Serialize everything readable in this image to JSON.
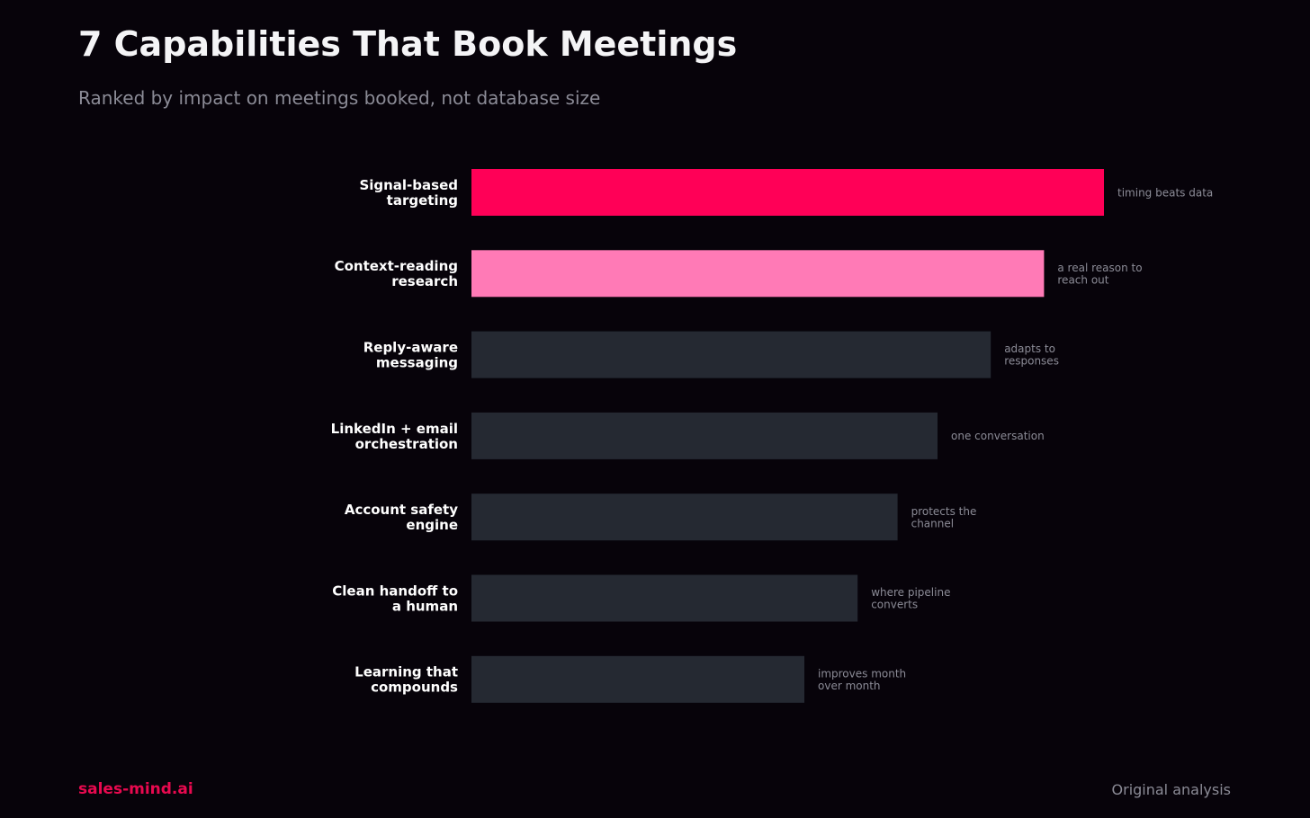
{
  "header": {
    "title": "7 Capabilities That Book Meetings",
    "subtitle": "Ranked by impact on meetings booked, not database size"
  },
  "footer": {
    "brand": "sales-mind.ai",
    "source": "Original analysis"
  },
  "colors": {
    "top": "#ff0057",
    "second": "#ff7ab6",
    "rest": "#252932",
    "label": "#ffffff",
    "note": "#8b8b96"
  },
  "chart_data": {
    "type": "bar",
    "orientation": "horizontal",
    "categories": [
      [
        "Signal-based",
        "targeting"
      ],
      [
        "Context-reading",
        "research"
      ],
      [
        "Reply-aware",
        "messaging"
      ],
      [
        "LinkedIn + email",
        "orchestration"
      ],
      [
        "Account safety",
        "engine"
      ],
      [
        "Clean handoff to",
        "a human"
      ],
      [
        "Learning that",
        "compounds"
      ]
    ],
    "values": [
      95,
      86,
      78,
      70,
      64,
      58,
      50
    ],
    "annotations": [
      [
        "timing beats data"
      ],
      [
        "a real reason to",
        "reach out"
      ],
      [
        "adapts to",
        "responses"
      ],
      [
        "one conversation"
      ],
      [
        "protects the",
        "channel"
      ],
      [
        "where pipeline",
        "converts"
      ],
      [
        "improves month",
        "over month"
      ]
    ],
    "xlim": [
      0,
      100
    ],
    "grid": false,
    "legend": "none"
  }
}
